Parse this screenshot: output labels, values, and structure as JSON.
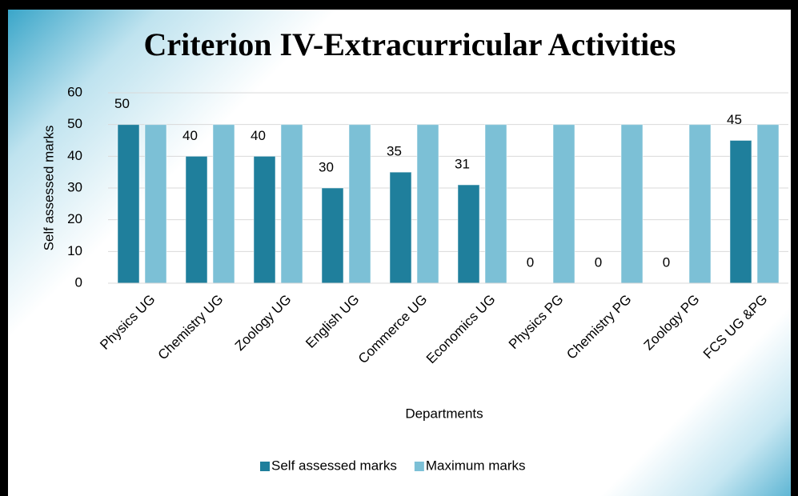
{
  "chart_data": {
    "type": "bar",
    "title": "Criterion IV-Extracurricular Activities",
    "x_label": "Departments",
    "y_label": "Self assessed marks",
    "categories": [
      "Physics  UG",
      "Chemistry UG",
      "Zoology UG",
      "English UG",
      "Commerce UG",
      "Economics UG",
      "Physics  PG",
      "Chemistry PG",
      "Zoology PG",
      "FCS UG &PG"
    ],
    "series": [
      {
        "name": "Self assessed marks",
        "color": "#1f7f9c",
        "values": [
          50,
          40,
          40,
          30,
          35,
          31,
          0,
          0,
          0,
          45
        ],
        "show_labels": true
      },
      {
        "name": "Maximum marks",
        "color": "#7cc0d6",
        "values": [
          50,
          50,
          50,
          50,
          50,
          50,
          50,
          50,
          50,
          50
        ],
        "show_labels": false
      }
    ],
    "ylim": [
      0,
      60
    ],
    "yticks": [
      0,
      10,
      20,
      30,
      40,
      50,
      60
    ],
    "grid": true,
    "legend": "bottom"
  }
}
